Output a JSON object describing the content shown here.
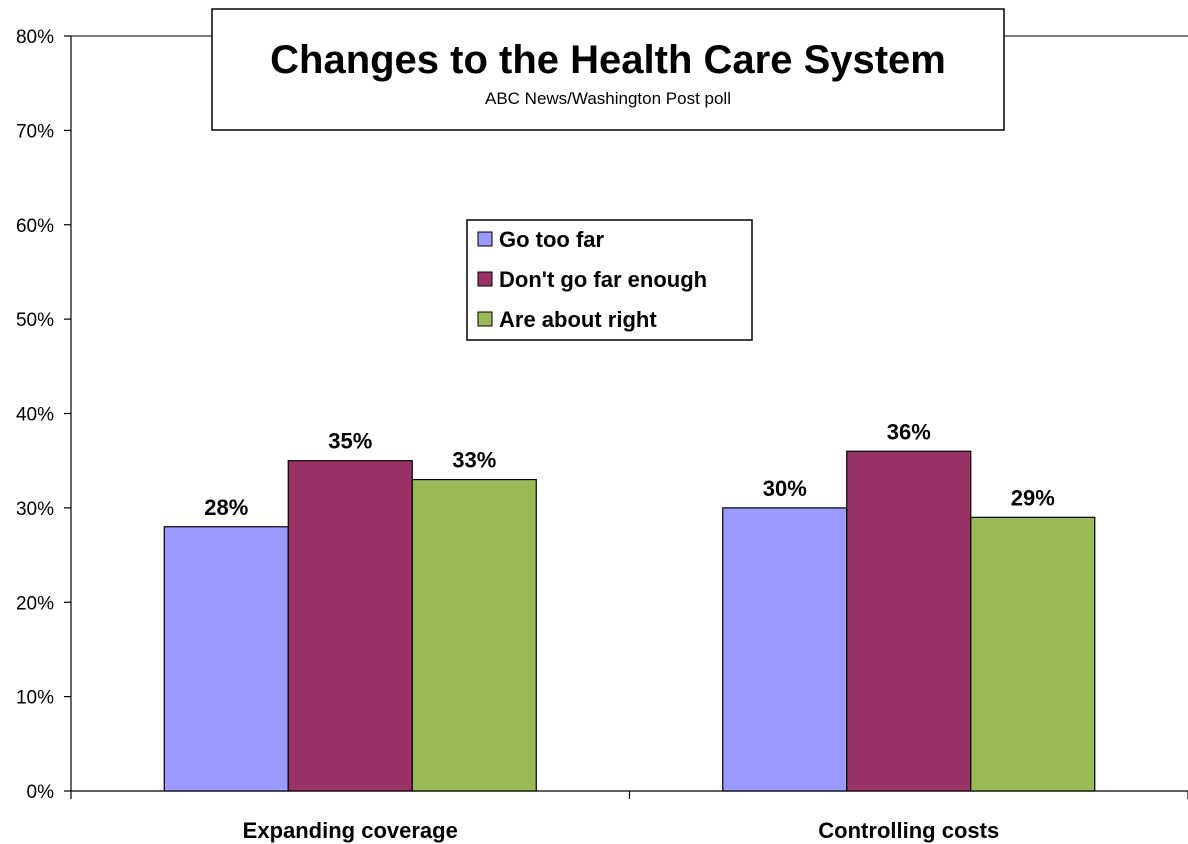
{
  "chart_data": {
    "type": "bar",
    "title": "Changes to the Health Care System",
    "subtitle": "ABC News/Washington Post poll",
    "categories": [
      "Expanding coverage",
      "Controlling costs"
    ],
    "series": [
      {
        "name": "Go too far",
        "values": [
          28,
          30
        ],
        "color": "#9999ff"
      },
      {
        "name": "Don't go far enough",
        "values": [
          35,
          36
        ],
        "color": "#993366"
      },
      {
        "name": "Are about right",
        "values": [
          33,
          29
        ],
        "color": "#9bbb59"
      }
    ],
    "data_labels": [
      [
        "28%",
        "30%"
      ],
      [
        "35%",
        "36%"
      ],
      [
        "33%",
        "29%"
      ]
    ],
    "yticks": [
      "0%",
      "10%",
      "20%",
      "30%",
      "40%",
      "50%",
      "60%",
      "70%",
      "80%"
    ],
    "ylim": [
      0,
      80
    ],
    "grid": false,
    "legend_position": "center"
  }
}
